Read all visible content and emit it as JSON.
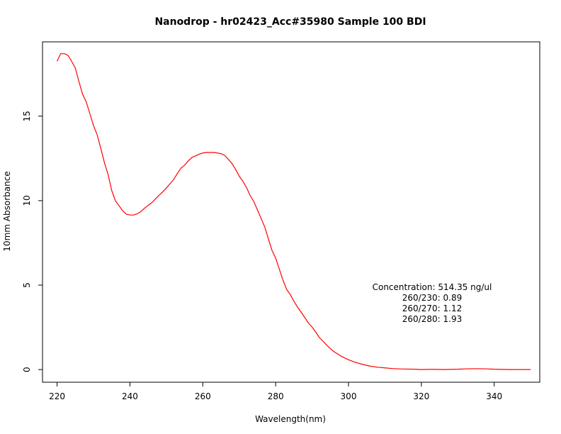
{
  "chart_data": {
    "type": "line",
    "title": "Nanodrop - hr02423_Acc#35980 Sample 100 BDI",
    "xlabel": "Wavelength(nm)",
    "ylabel": "10mm Absorbance",
    "xlim": [
      216,
      352.5
    ],
    "ylim": [
      -0.75,
      19.4
    ],
    "xticks": [
      220,
      240,
      260,
      280,
      300,
      320,
      340
    ],
    "yticks": [
      0,
      5,
      10,
      15
    ],
    "grid": false,
    "series": [
      {
        "color": "#ff0000",
        "x": [
          220,
          221,
          222,
          223,
          224,
          225,
          226,
          227,
          228,
          229,
          230,
          231,
          232,
          233,
          234,
          235,
          236,
          237,
          238,
          239,
          240,
          241,
          242,
          243,
          244,
          245,
          246,
          247,
          248,
          249,
          250,
          251,
          252,
          253,
          254,
          255,
          256,
          257,
          258,
          259,
          260,
          261,
          262,
          263,
          264,
          265,
          266,
          267,
          268,
          269,
          270,
          271,
          272,
          273,
          274,
          275,
          276,
          277,
          278,
          279,
          280,
          281,
          282,
          283,
          284,
          285,
          286,
          287,
          288,
          289,
          290,
          291,
          292,
          293,
          294,
          295,
          296,
          297,
          298,
          299,
          300,
          302,
          304,
          306,
          308,
          310,
          312,
          314,
          316,
          318,
          320,
          322,
          324,
          326,
          328,
          330,
          332,
          334,
          336,
          338,
          340,
          342,
          344,
          346,
          348,
          350
        ],
        "y": [
          18.25,
          18.7,
          18.7,
          18.6,
          18.25,
          17.85,
          17.05,
          16.3,
          15.85,
          15.15,
          14.45,
          13.9,
          13.1,
          12.25,
          11.55,
          10.6,
          10.0,
          9.7,
          9.4,
          9.2,
          9.15,
          9.15,
          9.22,
          9.35,
          9.55,
          9.72,
          9.88,
          10.1,
          10.32,
          10.52,
          10.75,
          11.0,
          11.25,
          11.6,
          11.92,
          12.1,
          12.35,
          12.55,
          12.65,
          12.75,
          12.82,
          12.85,
          12.85,
          12.85,
          12.82,
          12.78,
          12.68,
          12.45,
          12.2,
          11.85,
          11.45,
          11.15,
          10.78,
          10.3,
          9.95,
          9.45,
          8.95,
          8.45,
          7.75,
          7.05,
          6.6,
          5.95,
          5.3,
          4.75,
          4.45,
          4.05,
          3.7,
          3.4,
          3.08,
          2.75,
          2.52,
          2.22,
          1.9,
          1.68,
          1.45,
          1.24,
          1.06,
          0.93,
          0.79,
          0.68,
          0.58,
          0.42,
          0.3,
          0.2,
          0.14,
          0.1,
          0.06,
          0.04,
          0.03,
          0.02,
          0.0,
          0.01,
          0.01,
          0.0,
          0.01,
          0.02,
          0.04,
          0.05,
          0.05,
          0.04,
          0.02,
          0.01,
          0.0,
          0.0,
          0.0,
          0.0
        ]
      }
    ],
    "annotations": [
      "Concentration: 514.35 ng/ul",
      "260/230: 0.89",
      "260/270: 1.12",
      "260/280: 1.93"
    ]
  }
}
